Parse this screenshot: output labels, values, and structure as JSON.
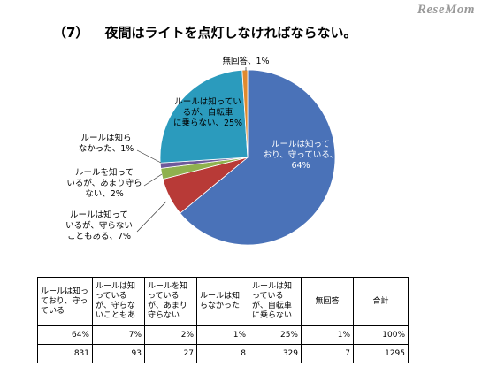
{
  "watermark": "ReseMom",
  "title": {
    "number": "（7）",
    "text": "夜間はライトを点灯しなければならない。"
  },
  "chart_data": {
    "type": "pie",
    "slices": [
      {
        "label": "ルールは知って|おり、守っている、|64%",
        "value": 64,
        "color": "#4a72b8"
      },
      {
        "label": "ルールは知って|いるが、守らない|こともある、7%",
        "value": 7,
        "color": "#b83a37"
      },
      {
        "label": "ルールを知って|いるが、あまり守ら|ない、2%",
        "value": 2,
        "color": "#8fb14e"
      },
      {
        "label": "ルールは知ら|なかった、1%",
        "value": 1,
        "color": "#6e5a9a"
      },
      {
        "label": "ルールは知ってい|るが、自転車|に乗らない、25%",
        "value": 25,
        "color": "#2b9bbd"
      },
      {
        "label": "無回答、1%",
        "value": 1,
        "color": "#e08a2e"
      }
    ]
  },
  "table": {
    "headers": [
      "ルールは知っており、守っている",
      "ルールは知っているが、守らないこともあ",
      "ルールを知っているが、あまり守らない",
      "ルールは知らなかった",
      "ルールは知っているが、自転車に乗らない",
      "無回答",
      "合計"
    ],
    "rows": [
      [
        "64%",
        "7%",
        "2%",
        "1%",
        "25%",
        "1%",
        "100%"
      ],
      [
        "831",
        "93",
        "27",
        "8",
        "329",
        "7",
        "1295"
      ]
    ]
  }
}
